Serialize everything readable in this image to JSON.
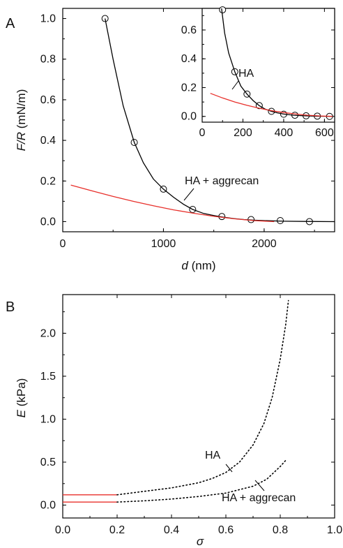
{
  "chart_data": [
    {
      "panel": "A",
      "type": "scatter",
      "xlabel_var": "d",
      "xlabel_unit": " (nm)",
      "ylabel_var": "F/R",
      "ylabel_unit": " (mN/m)",
      "xlim": [
        0,
        2700
      ],
      "ylim": [
        -0.05,
        1.05
      ],
      "xticks": [
        "0",
        "1000",
        "2000"
      ],
      "xtick_values": [
        0,
        1000,
        2000
      ],
      "yticks": [
        "0.0",
        "0.2",
        "0.4",
        "0.6",
        "0.8",
        "1.0"
      ],
      "ytick_values": [
        0,
        0.2,
        0.4,
        0.6,
        0.8,
        1.0
      ],
      "annotation": "HA + aggrecan",
      "series": [
        {
          "kind": "points",
          "x": [
            420,
            710,
            1000,
            1290,
            1580,
            1870,
            2160,
            2450
          ],
          "y": [
            1.0,
            0.39,
            0.16,
            0.06,
            0.025,
            0.01,
            0.005,
            0.0
          ]
        },
        {
          "kind": "fit",
          "color": "#000000",
          "x": [
            420,
            500,
            600,
            710,
            800,
            900,
            1000,
            1100,
            1200,
            1290,
            1400,
            1500,
            1580,
            1700,
            1800,
            1900,
            2000,
            2200,
            2400,
            2700
          ],
          "y": [
            1.0,
            0.8,
            0.57,
            0.39,
            0.29,
            0.21,
            0.16,
            0.12,
            0.085,
            0.06,
            0.04,
            0.03,
            0.023,
            0.015,
            0.01,
            0.007,
            0.005,
            0.002,
            0.001,
            0.0
          ]
        },
        {
          "kind": "fit",
          "color": "#e8302b",
          "x": [
            80,
            300,
            500,
            700,
            900,
            1100,
            1300,
            1500,
            1700,
            1900,
            2100
          ],
          "y": [
            0.18,
            0.15,
            0.124,
            0.1,
            0.078,
            0.058,
            0.041,
            0.026,
            0.014,
            0.005,
            0.0
          ]
        }
      ]
    },
    {
      "panel": "A-inset",
      "type": "scatter",
      "xlim": [
        0,
        650
      ],
      "ylim": [
        -0.04,
        0.75
      ],
      "xticks": [
        "0",
        "200",
        "400",
        "600"
      ],
      "xtick_values": [
        0,
        200,
        400,
        600
      ],
      "yticks": [
        "0.0",
        "0.2",
        "0.4",
        "0.6"
      ],
      "ytick_values": [
        0,
        0.2,
        0.4,
        0.6
      ],
      "annotation": "HA",
      "series": [
        {
          "kind": "points",
          "x": [
            100,
            160,
            220,
            280,
            340,
            400,
            455,
            510,
            565,
            625
          ],
          "y": [
            0.74,
            0.31,
            0.155,
            0.075,
            0.035,
            0.015,
            0.008,
            0.004,
            0.002,
            0.0
          ]
        },
        {
          "kind": "fit",
          "color": "#000000",
          "x": [
            95,
            110,
            130,
            160,
            190,
            220,
            250,
            280,
            310,
            340,
            370,
            400,
            450,
            500,
            550,
            600,
            640
          ],
          "y": [
            0.75,
            0.58,
            0.44,
            0.31,
            0.21,
            0.155,
            0.11,
            0.075,
            0.05,
            0.035,
            0.024,
            0.016,
            0.008,
            0.004,
            0.002,
            0.0005,
            0.0
          ]
        },
        {
          "kind": "fit",
          "color": "#e8302b",
          "x": [
            40,
            100,
            160,
            220,
            280,
            340,
            400,
            460,
            520,
            580,
            640
          ],
          "y": [
            0.16,
            0.128,
            0.1,
            0.077,
            0.057,
            0.04,
            0.027,
            0.016,
            0.008,
            0.003,
            0.0
          ]
        }
      ]
    },
    {
      "panel": "B",
      "type": "line",
      "xlabel_var": "σ",
      "ylabel_var": "E",
      "ylabel_unit": " (kPa)",
      "xlim": [
        0,
        1.0
      ],
      "ylim": [
        -0.15,
        2.45
      ],
      "xticks": [
        "0.0",
        "0.2",
        "0.4",
        "0.6",
        "0.8",
        "1.0"
      ],
      "xtick_values": [
        0,
        0.2,
        0.4,
        0.6,
        0.8,
        1.0
      ],
      "yticks": [
        "0.0",
        "0.5",
        "1.0",
        "1.5",
        "2.0"
      ],
      "ytick_values": [
        0,
        0.5,
        1.0,
        1.5,
        2.0
      ],
      "labels": [
        "HA",
        "HA + aggrecan"
      ],
      "series": [
        {
          "style": "solid",
          "color": "#e8302b",
          "x": [
            0.0,
            0.2
          ],
          "y": [
            0.12,
            0.12
          ]
        },
        {
          "style": "solid",
          "color": "#e8302b",
          "x": [
            0.0,
            0.2
          ],
          "y": [
            0.035,
            0.035
          ]
        },
        {
          "style": "dotted",
          "color": "#000000",
          "x": [
            0.2,
            0.3,
            0.4,
            0.5,
            0.55,
            0.6,
            0.65,
            0.7,
            0.74,
            0.77,
            0.8,
            0.82,
            0.83
          ],
          "y": [
            0.12,
            0.16,
            0.2,
            0.26,
            0.31,
            0.38,
            0.5,
            0.7,
            0.95,
            1.25,
            1.7,
            2.1,
            2.38
          ]
        },
        {
          "style": "dotted",
          "color": "#000000",
          "x": [
            0.2,
            0.3,
            0.4,
            0.5,
            0.6,
            0.7,
            0.75,
            0.8,
            0.82
          ],
          "y": [
            0.035,
            0.05,
            0.07,
            0.1,
            0.14,
            0.22,
            0.3,
            0.45,
            0.52
          ]
        }
      ]
    }
  ]
}
